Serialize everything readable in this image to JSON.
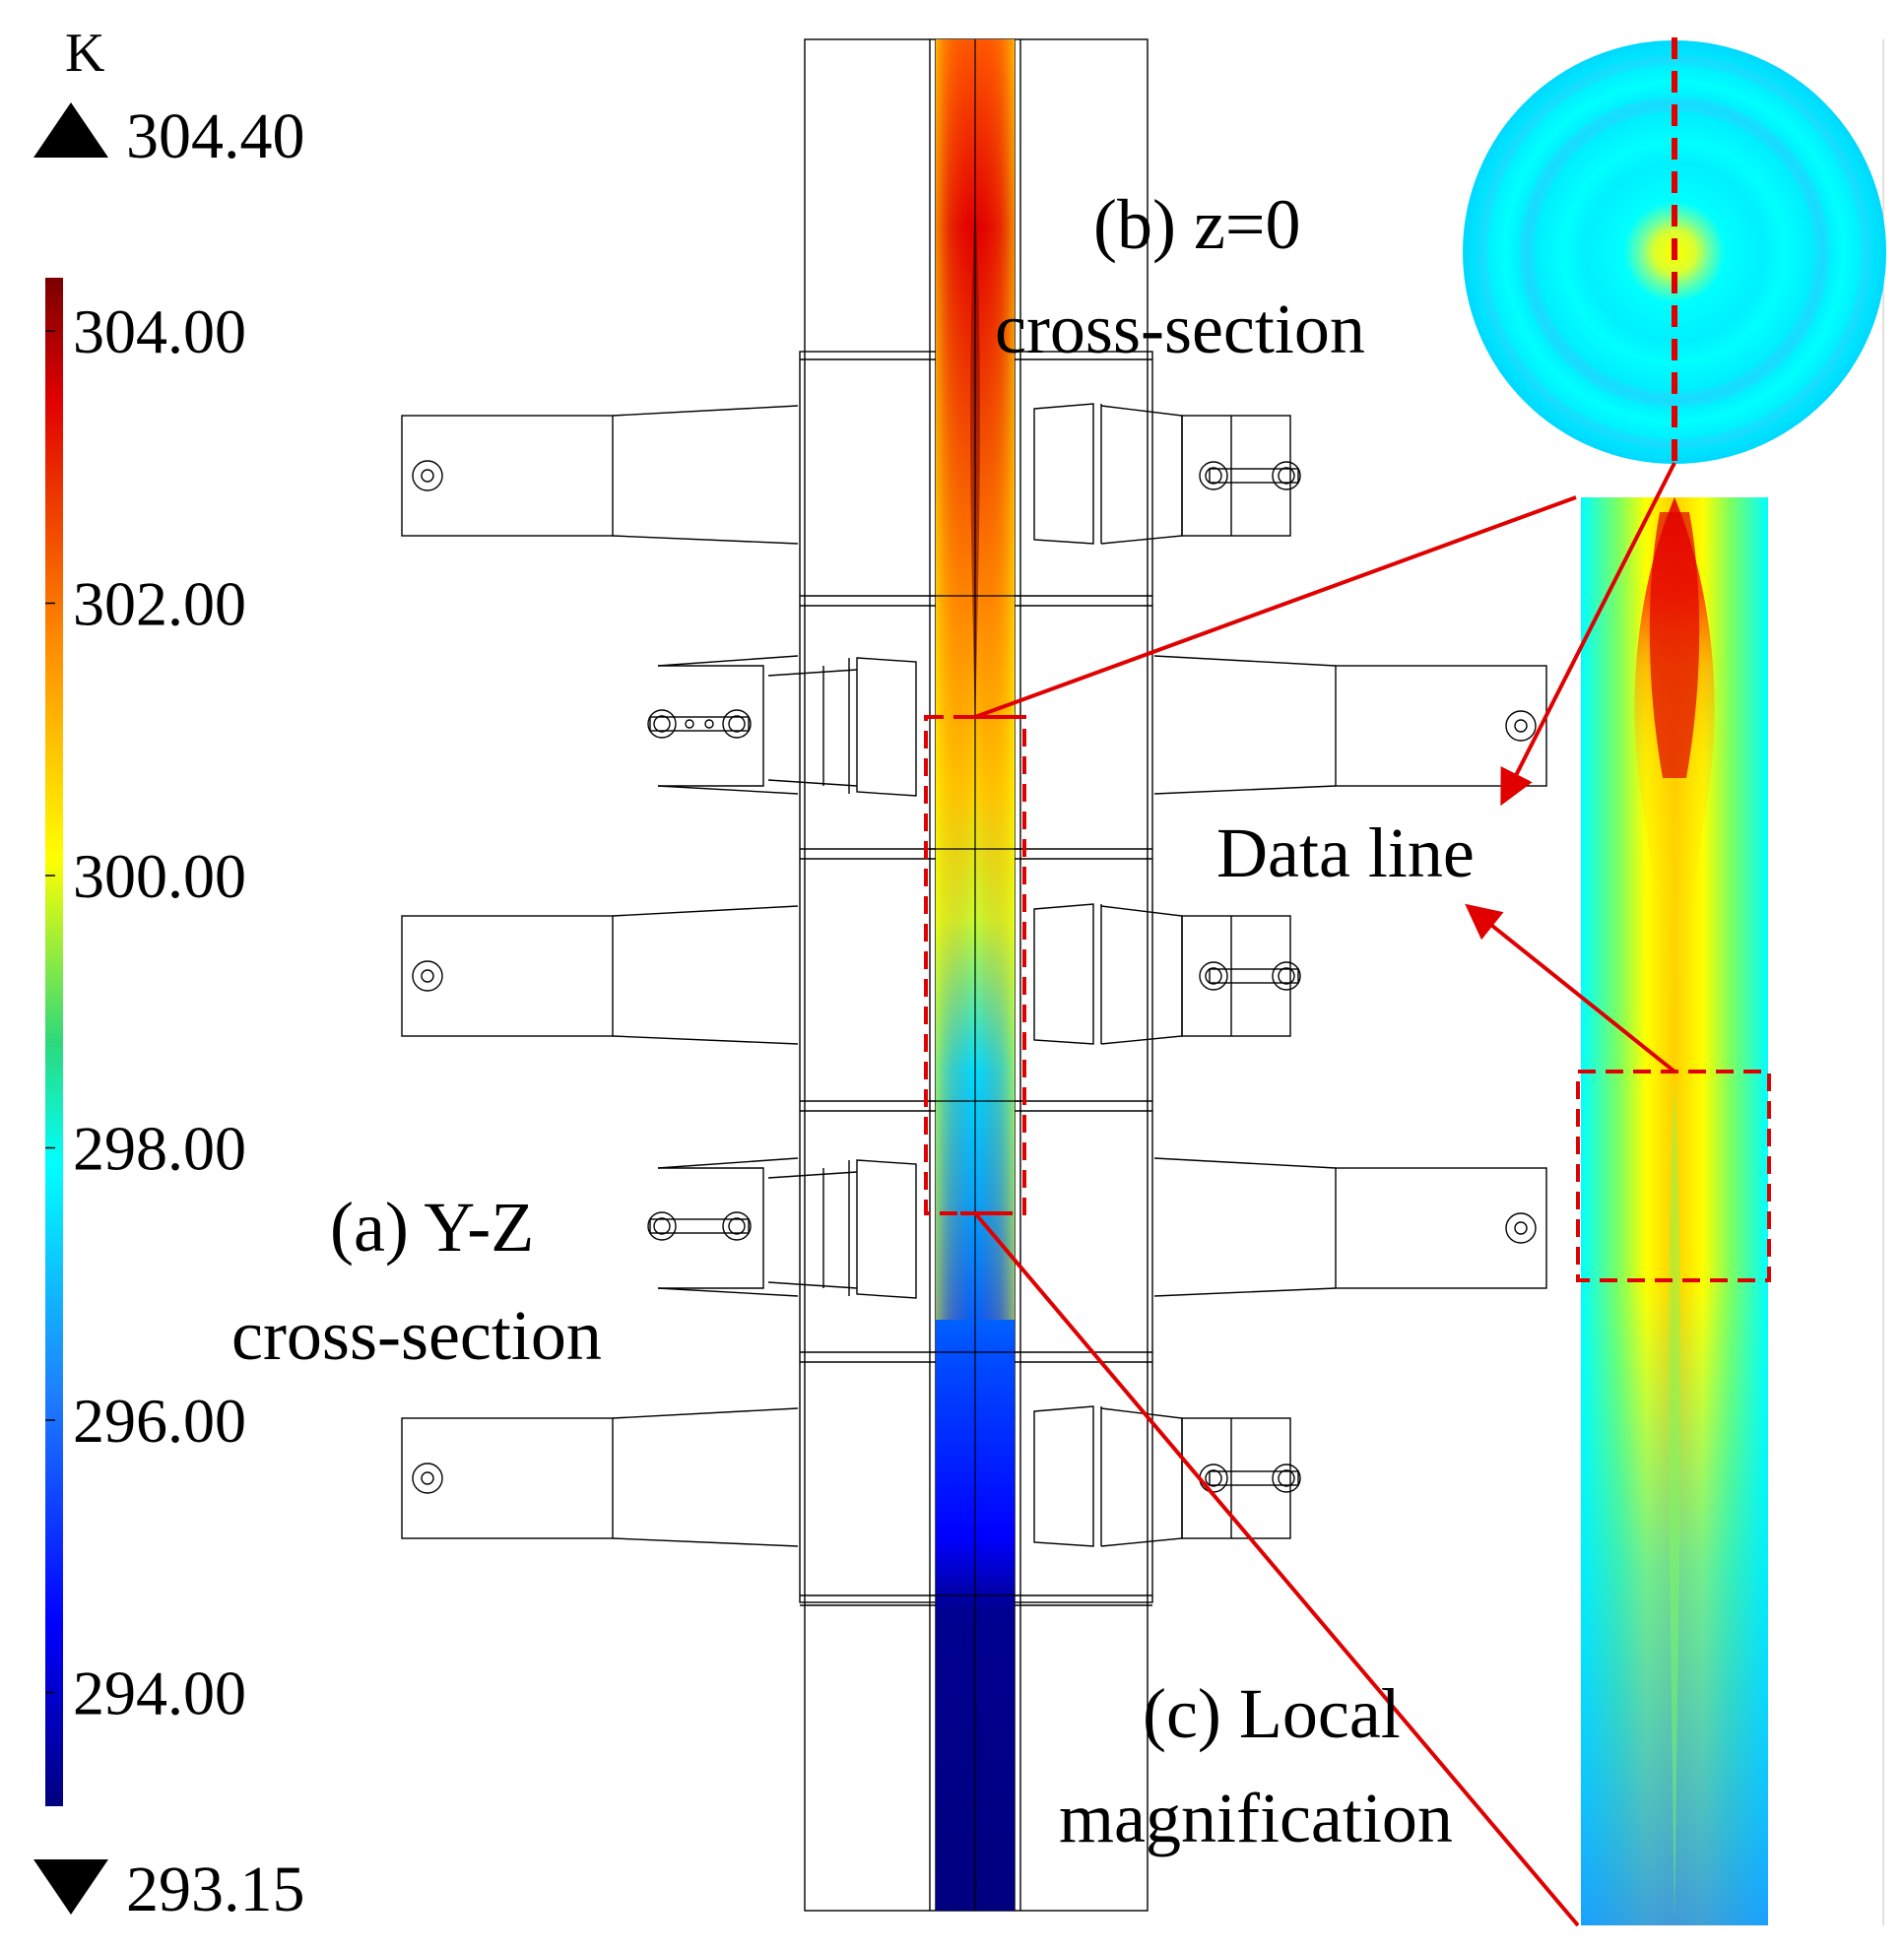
{
  "colorbar": {
    "unit": "K",
    "max_value": "304.40",
    "min_value": "293.15",
    "ticks": [
      "304.00",
      "302.00",
      "300.00",
      "298.00",
      "296.00",
      "294.00"
    ],
    "colormap": [
      "#7a0000",
      "#e00000",
      "#ff7f00",
      "#ffff00",
      "#23d97a",
      "#00ffff",
      "#1e7fff",
      "#0000ff",
      "#00007f"
    ]
  },
  "labels": {
    "b_line1": "(b) z=0",
    "b_line2": "cross-section",
    "a_line1": "(a) Y-Z",
    "a_line2": "cross-section",
    "c_line1": "(c) Local",
    "c_line2": "magnification",
    "data_line": "Data line"
  },
  "colors": {
    "annotation_red": "#e00000",
    "outline": "#000000"
  }
}
